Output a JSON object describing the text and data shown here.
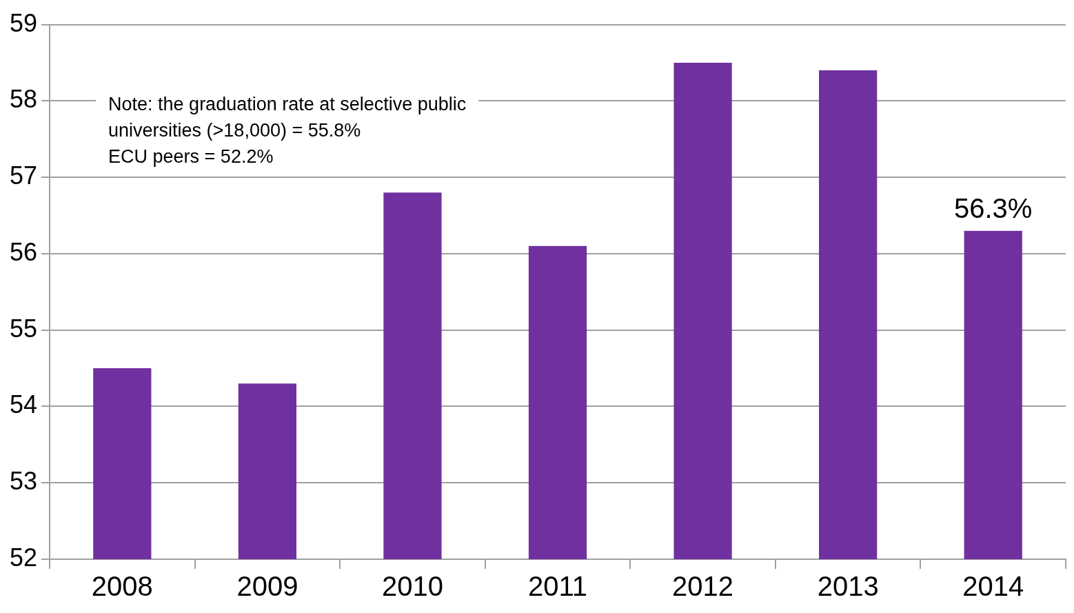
{
  "chart_data": {
    "type": "bar",
    "categories": [
      "2008",
      "2009",
      "2010",
      "2011",
      "2012",
      "2013",
      "2014"
    ],
    "values": [
      54.5,
      54.3,
      56.8,
      56.1,
      58.5,
      58.4,
      56.3
    ],
    "value_labels": [
      null,
      null,
      null,
      null,
      null,
      null,
      "56.3%"
    ],
    "color": "#7030a0",
    "ylim": [
      52,
      59
    ],
    "yticks": [
      52,
      53,
      54,
      55,
      56,
      57,
      58,
      59
    ],
    "grid": "y",
    "legend": false,
    "annotations": [
      "Note: the graduation rate at selective public\nuniversities (>18,000) = 55.8%\nECU peers = 52.2%"
    ]
  }
}
